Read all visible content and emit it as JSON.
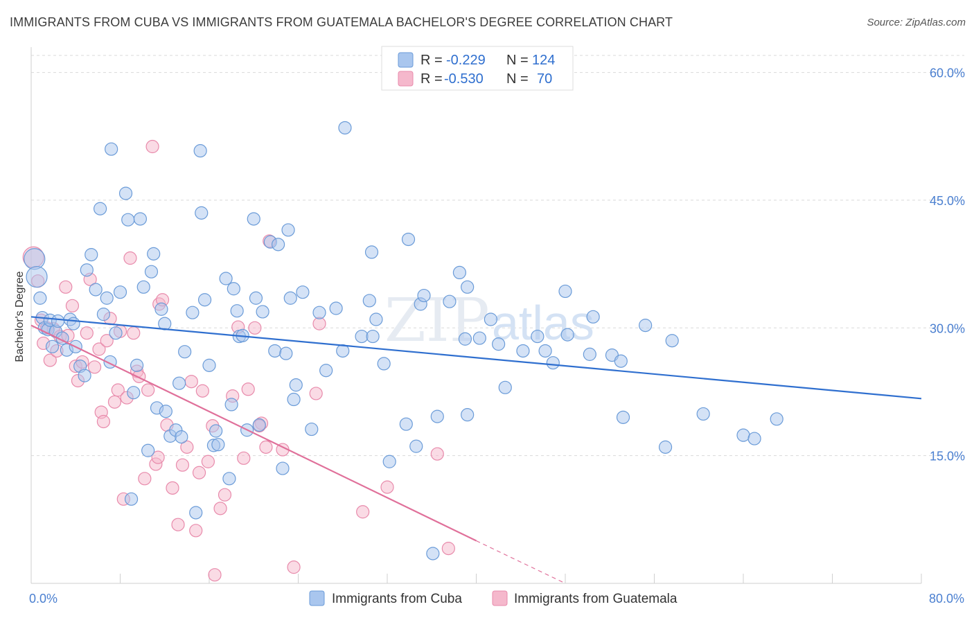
{
  "title": "IMMIGRANTS FROM CUBA VS IMMIGRANTS FROM GUATEMALA BACHELOR'S DEGREE CORRELATION CHART",
  "source": "Source: ZipAtlas.com",
  "watermark": {
    "zip": "ZIP",
    "atlas": "atlas"
  },
  "legend": {
    "r_label": "R =",
    "n_label": "N =",
    "cuba": {
      "r": "-0.229",
      "n": "124"
    },
    "guatemala": {
      "r": "-0.530",
      "n": "70"
    }
  },
  "bottom_legend": {
    "cuba": "Immigrants from Cuba",
    "guatemala": "Immigrants from Guatemala"
  },
  "colors": {
    "cuba_fill": "#a9c6ee",
    "cuba_stroke": "#6a9bd8",
    "cuba_line": "#2f6fcf",
    "guatemala_fill": "#f5b8cc",
    "guatemala_stroke": "#e88aab",
    "guatemala_line": "#e0709a",
    "tick": "#4a7fd0",
    "grid": "#d9d9d9"
  },
  "chart_data": {
    "type": "scatter",
    "title": "IMMIGRANTS FROM CUBA VS IMMIGRANTS FROM GUATEMALA BACHELOR'S DEGREE CORRELATION CHART",
    "xlabel": "",
    "ylabel": "Bachelor's Degree",
    "xlim": [
      0,
      80
    ],
    "ylim": [
      0,
      62
    ],
    "x_tick_labels": [
      "0.0%",
      "80.0%"
    ],
    "y_ticks": [
      15,
      30,
      45,
      60
    ],
    "y_tick_labels": [
      "15.0%",
      "30.0%",
      "45.0%",
      "60.0%"
    ],
    "grid": true,
    "legend_position": "top-center",
    "series": [
      {
        "name": "Immigrants from Cuba",
        "r": -0.229,
        "n": 124,
        "trend": {
          "x": [
            0,
            80
          ],
          "y": [
            31.3,
            21.7
          ]
        },
        "points": [
          [
            0.3,
            38.1
          ],
          [
            0.5,
            36.0
          ],
          [
            0.8,
            33.5
          ],
          [
            1.0,
            31.2
          ],
          [
            1.2,
            30.0
          ],
          [
            1.5,
            29.8
          ],
          [
            1.7,
            30.9
          ],
          [
            1.9,
            27.8
          ],
          [
            2.2,
            29.6
          ],
          [
            2.4,
            30.8
          ],
          [
            2.8,
            28.8
          ],
          [
            3.2,
            27.4
          ],
          [
            3.5,
            31.0
          ],
          [
            3.8,
            30.5
          ],
          [
            4.0,
            27.8
          ],
          [
            4.4,
            25.5
          ],
          [
            4.8,
            24.4
          ],
          [
            5.0,
            36.8
          ],
          [
            5.4,
            38.6
          ],
          [
            5.8,
            34.5
          ],
          [
            6.2,
            44.0
          ],
          [
            6.5,
            31.6
          ],
          [
            6.8,
            33.5
          ],
          [
            7.1,
            26.0
          ],
          [
            7.2,
            51.0
          ],
          [
            7.6,
            29.4
          ],
          [
            8.0,
            34.2
          ],
          [
            8.5,
            45.8
          ],
          [
            8.7,
            42.7
          ],
          [
            9.0,
            9.9
          ],
          [
            9.2,
            22.4
          ],
          [
            9.5,
            25.6
          ],
          [
            9.8,
            42.8
          ],
          [
            10.1,
            34.8
          ],
          [
            10.5,
            15.6
          ],
          [
            10.8,
            36.6
          ],
          [
            11.0,
            38.7
          ],
          [
            11.3,
            20.6
          ],
          [
            11.7,
            32.2
          ],
          [
            12.0,
            30.5
          ],
          [
            12.1,
            20.2
          ],
          [
            12.5,
            17.3
          ],
          [
            13.0,
            18.0
          ],
          [
            13.3,
            23.5
          ],
          [
            13.5,
            17.2
          ],
          [
            13.8,
            27.2
          ],
          [
            14.5,
            31.8
          ],
          [
            14.8,
            8.3
          ],
          [
            15.2,
            50.8
          ],
          [
            15.3,
            43.5
          ],
          [
            15.6,
            33.3
          ],
          [
            16.0,
            25.6
          ],
          [
            16.4,
            16.2
          ],
          [
            16.6,
            17.9
          ],
          [
            16.8,
            16.3
          ],
          [
            17.5,
            35.8
          ],
          [
            17.8,
            12.3
          ],
          [
            18.0,
            21.0
          ],
          [
            18.2,
            34.6
          ],
          [
            18.5,
            32.0
          ],
          [
            18.7,
            29.0
          ],
          [
            19.0,
            29.1
          ],
          [
            19.4,
            18.0
          ],
          [
            20.0,
            42.8
          ],
          [
            20.2,
            33.5
          ],
          [
            20.5,
            18.6
          ],
          [
            20.8,
            31.9
          ],
          [
            21.5,
            40.1
          ],
          [
            21.9,
            27.3
          ],
          [
            22.2,
            39.8
          ],
          [
            22.6,
            13.5
          ],
          [
            22.9,
            27.0
          ],
          [
            23.1,
            41.5
          ],
          [
            23.3,
            33.5
          ],
          [
            23.6,
            21.6
          ],
          [
            23.8,
            23.3
          ],
          [
            24.4,
            34.2
          ],
          [
            25.2,
            18.1
          ],
          [
            25.9,
            31.8
          ],
          [
            26.5,
            25.0
          ],
          [
            27.4,
            32.3
          ],
          [
            28.0,
            27.3
          ],
          [
            28.2,
            53.5
          ],
          [
            29.7,
            29.0
          ],
          [
            30.4,
            33.2
          ],
          [
            30.6,
            38.9
          ],
          [
            30.7,
            29.0
          ],
          [
            31.0,
            31.0
          ],
          [
            31.7,
            25.8
          ],
          [
            32.2,
            14.3
          ],
          [
            33.7,
            18.7
          ],
          [
            33.9,
            40.4
          ],
          [
            34.6,
            16.1
          ],
          [
            35.0,
            32.8
          ],
          [
            35.3,
            33.8
          ],
          [
            36.1,
            3.5
          ],
          [
            36.5,
            19.6
          ],
          [
            37.6,
            33.1
          ],
          [
            38.5,
            36.5
          ],
          [
            39.0,
            28.7
          ],
          [
            39.2,
            19.8
          ],
          [
            39.2,
            34.8
          ],
          [
            40.3,
            28.8
          ],
          [
            41.3,
            31.0
          ],
          [
            42.0,
            28.1
          ],
          [
            42.6,
            23.0
          ],
          [
            44.2,
            27.3
          ],
          [
            45.5,
            29.0
          ],
          [
            46.2,
            27.3
          ],
          [
            46.9,
            25.9
          ],
          [
            48.0,
            34.3
          ],
          [
            48.2,
            29.2
          ],
          [
            50.2,
            26.9
          ],
          [
            50.5,
            31.3
          ],
          [
            52.2,
            26.8
          ],
          [
            53.0,
            26.1
          ],
          [
            53.2,
            19.5
          ],
          [
            55.2,
            30.3
          ],
          [
            57.0,
            16.0
          ],
          [
            57.6,
            28.5
          ],
          [
            60.4,
            19.9
          ],
          [
            64.0,
            17.4
          ],
          [
            65.0,
            17.0
          ],
          [
            67.0,
            19.3
          ]
        ]
      },
      {
        "name": "Immigrants from Guatemala",
        "r": -0.53,
        "n": 70,
        "trend": {
          "x": [
            0,
            40
          ],
          "y": [
            30.3,
            5.0
          ]
        },
        "trend_dashed": {
          "x": [
            40,
            48
          ],
          "y": [
            5.0,
            0.0
          ]
        },
        "points": [
          [
            0.2,
            38.3
          ],
          [
            0.6,
            35.5
          ],
          [
            0.9,
            30.9
          ],
          [
            1.1,
            28.2
          ],
          [
            1.4,
            30.0
          ],
          [
            1.7,
            26.2
          ],
          [
            2.0,
            29.9
          ],
          [
            2.3,
            27.3
          ],
          [
            2.6,
            29.0
          ],
          [
            3.1,
            34.8
          ],
          [
            3.3,
            29.1
          ],
          [
            3.7,
            32.6
          ],
          [
            4.0,
            25.5
          ],
          [
            4.2,
            23.8
          ],
          [
            4.6,
            26.0
          ],
          [
            5.0,
            29.4
          ],
          [
            5.3,
            35.7
          ],
          [
            5.7,
            25.4
          ],
          [
            6.1,
            27.5
          ],
          [
            6.3,
            20.1
          ],
          [
            6.5,
            19.0
          ],
          [
            6.8,
            28.5
          ],
          [
            7.1,
            31.1
          ],
          [
            7.5,
            21.3
          ],
          [
            7.8,
            22.7
          ],
          [
            8.0,
            29.6
          ],
          [
            8.3,
            9.9
          ],
          [
            8.6,
            21.8
          ],
          [
            8.9,
            38.2
          ],
          [
            9.2,
            29.4
          ],
          [
            9.5,
            24.9
          ],
          [
            9.7,
            24.3
          ],
          [
            10.2,
            12.3
          ],
          [
            10.5,
            22.7
          ],
          [
            10.9,
            51.3
          ],
          [
            11.2,
            14.0
          ],
          [
            11.5,
            32.8
          ],
          [
            11.8,
            33.3
          ],
          [
            12.2,
            18.6
          ],
          [
            12.7,
            11.2
          ],
          [
            13.2,
            6.9
          ],
          [
            13.6,
            13.9
          ],
          [
            14.0,
            16.0
          ],
          [
            14.4,
            23.7
          ],
          [
            14.8,
            6.2
          ],
          [
            15.1,
            13.0
          ],
          [
            15.4,
            22.6
          ],
          [
            15.9,
            14.3
          ],
          [
            16.3,
            18.5
          ],
          [
            16.5,
            1.0
          ],
          [
            17.0,
            8.8
          ],
          [
            17.4,
            10.4
          ],
          [
            18.1,
            22.0
          ],
          [
            18.6,
            30.1
          ],
          [
            19.1,
            14.7
          ],
          [
            19.5,
            22.8
          ],
          [
            20.1,
            30.0
          ],
          [
            20.7,
            18.8
          ],
          [
            21.1,
            16.0
          ],
          [
            21.4,
            40.2
          ],
          [
            22.6,
            15.7
          ],
          [
            23.6,
            1.9
          ],
          [
            25.6,
            22.3
          ],
          [
            25.9,
            30.5
          ],
          [
            29.8,
            8.4
          ],
          [
            32.0,
            11.3
          ],
          [
            36.5,
            15.2
          ],
          [
            37.5,
            4.1
          ],
          [
            11.4,
            14.8
          ],
          [
            20.5,
            18.5
          ]
        ]
      }
    ]
  }
}
